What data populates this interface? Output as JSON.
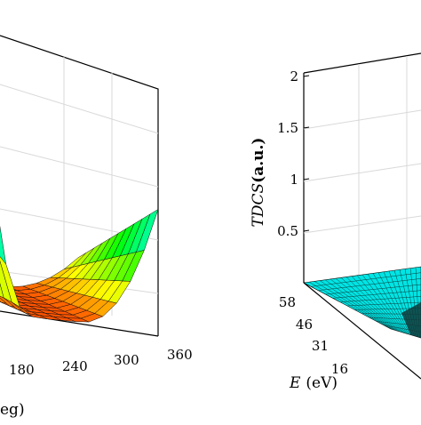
{
  "chart_data": [
    {
      "type": "surface",
      "title": "",
      "xlabel_fragment": "eg)",
      "x_ticks": [
        "180",
        "240",
        "300",
        "360"
      ],
      "xlim": [
        120,
        360
      ],
      "colormap": "hsv",
      "notes_visible": "partial panel, cropped on the left",
      "peak_region": "x around 120-150 with steep magenta/blue peak, minimum valley near x ~ 200-280, rising again near x = 360"
    },
    {
      "type": "surface",
      "title": "",
      "zlabel_symbol": "TDCS",
      "zlabel_unit": "(a.u.)",
      "z_ticks": [
        "0.5",
        "1",
        "1.5",
        "2"
      ],
      "zlim": [
        0,
        2
      ],
      "ylabel_symbol": "E",
      "ylabel_unit": "(eV)",
      "y_ticks": [
        "58",
        "46",
        "31",
        "16"
      ],
      "surface_color": "#00e5e5",
      "surface_level": "near zero, flat"
    }
  ]
}
